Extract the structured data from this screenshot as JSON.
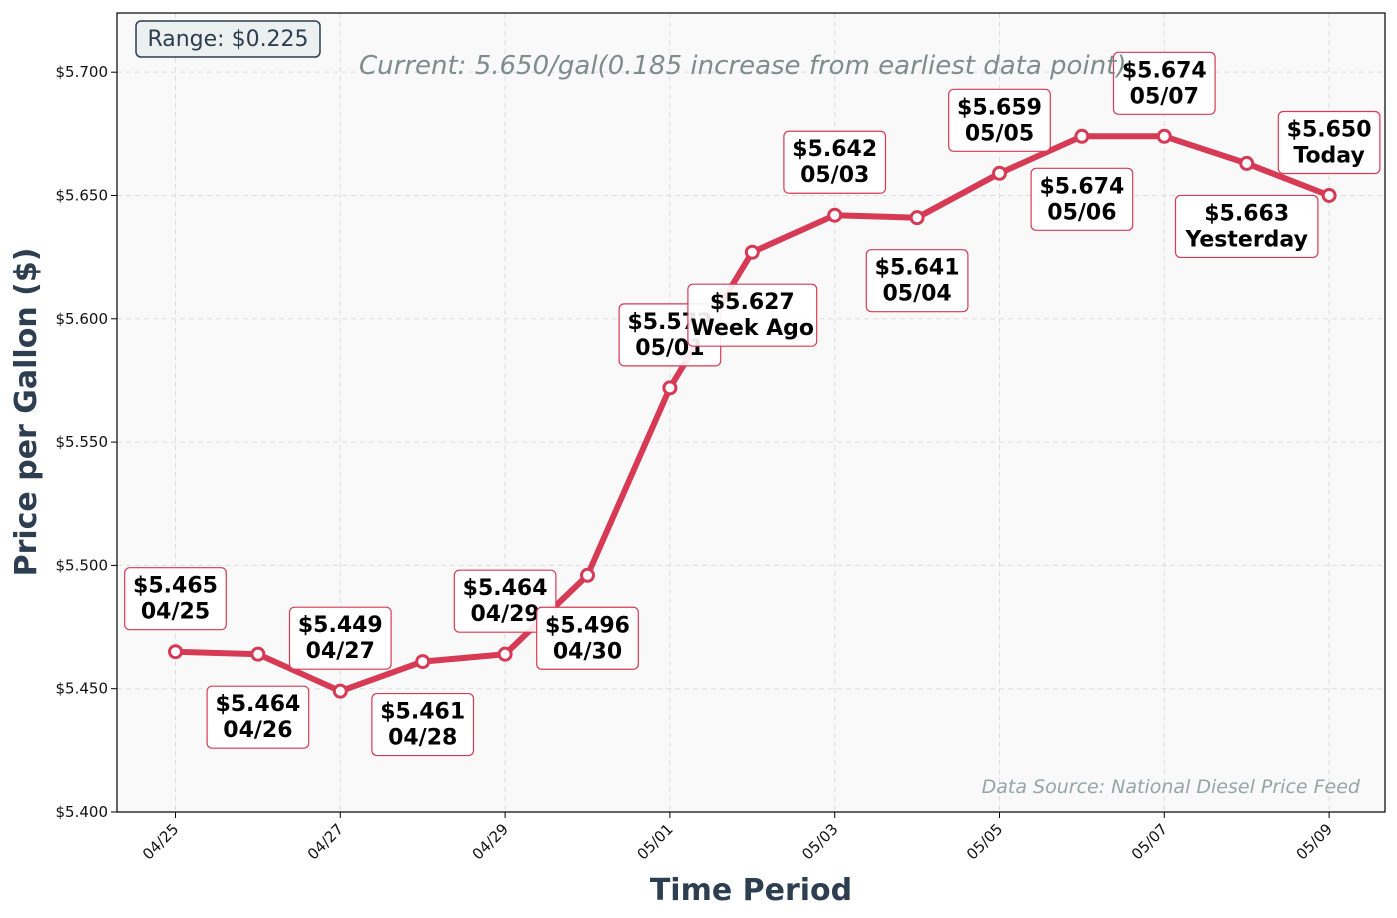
{
  "chart_data": {
    "type": "line",
    "title": "",
    "xlabel": "Time Period",
    "ylabel": "Price per Gallon ($)",
    "ylim": [
      5.4,
      5.724
    ],
    "y_ticks": [
      "$5.400",
      "$5.450",
      "$5.500",
      "$5.550",
      "$5.600",
      "$5.650",
      "$5.700"
    ],
    "y_tick_values": [
      5.4,
      5.45,
      5.5,
      5.55,
      5.6,
      5.65,
      5.7
    ],
    "x_ticks": [
      "04/25",
      "04/27",
      "04/29",
      "05/01",
      "05/03",
      "05/05",
      "05/07",
      "05/09"
    ],
    "x_tick_days": [
      0,
      2,
      4,
      6,
      8,
      10,
      12,
      14
    ],
    "grid": true,
    "line_color": "#d63a55",
    "points": [
      {
        "date": "04/25",
        "day": 0,
        "value": 5.465,
        "price_label": "$5.465",
        "date_label": "04/25",
        "label_pos": "above"
      },
      {
        "date": "04/26",
        "day": 1,
        "value": 5.464,
        "price_label": "$5.464",
        "date_label": "04/26",
        "label_pos": "below"
      },
      {
        "date": "04/27",
        "day": 2,
        "value": 5.449,
        "price_label": "$5.449",
        "date_label": "04/27",
        "label_pos": "above"
      },
      {
        "date": "04/28",
        "day": 3,
        "value": 5.461,
        "price_label": "$5.461",
        "date_label": "04/28",
        "label_pos": "below"
      },
      {
        "date": "04/29",
        "day": 4,
        "value": 5.464,
        "price_label": "$5.464",
        "date_label": "04/29",
        "label_pos": "above"
      },
      {
        "date": "04/30",
        "day": 5,
        "value": 5.496,
        "price_label": "$5.496",
        "date_label": "04/30",
        "label_pos": "below"
      },
      {
        "date": "05/01",
        "day": 6,
        "value": 5.572,
        "price_label": "$5.572",
        "date_label": "05/01",
        "label_pos": "above"
      },
      {
        "date": "05/02",
        "day": 7,
        "value": 5.627,
        "price_label": "$5.627",
        "date_label": "Week Ago",
        "label_pos": "below"
      },
      {
        "date": "05/03",
        "day": 8,
        "value": 5.642,
        "price_label": "$5.642",
        "date_label": "05/03",
        "label_pos": "above"
      },
      {
        "date": "05/04",
        "day": 9,
        "value": 5.641,
        "price_label": "$5.641",
        "date_label": "05/04",
        "label_pos": "below"
      },
      {
        "date": "05/05",
        "day": 10,
        "value": 5.659,
        "price_label": "$5.659",
        "date_label": "05/05",
        "label_pos": "above"
      },
      {
        "date": "05/06",
        "day": 11,
        "value": 5.674,
        "price_label": "$5.674",
        "date_label": "05/06",
        "label_pos": "below"
      },
      {
        "date": "05/07",
        "day": 12,
        "value": 5.674,
        "price_label": "$5.674",
        "date_label": "05/07",
        "label_pos": "above"
      },
      {
        "date": "05/08",
        "day": 13,
        "value": 5.663,
        "price_label": "$5.663",
        "date_label": "Yesterday",
        "label_pos": "below"
      },
      {
        "date": "05/09",
        "day": 14,
        "value": 5.65,
        "price_label": "$5.650",
        "date_label": "Today",
        "label_pos": "above"
      }
    ],
    "annotations": {
      "range": "Range: $0.225",
      "current": "Current: 5.650/gal(0.185 increase from earliest data point)",
      "source": "Data Source: National Diesel Price Feed"
    }
  }
}
